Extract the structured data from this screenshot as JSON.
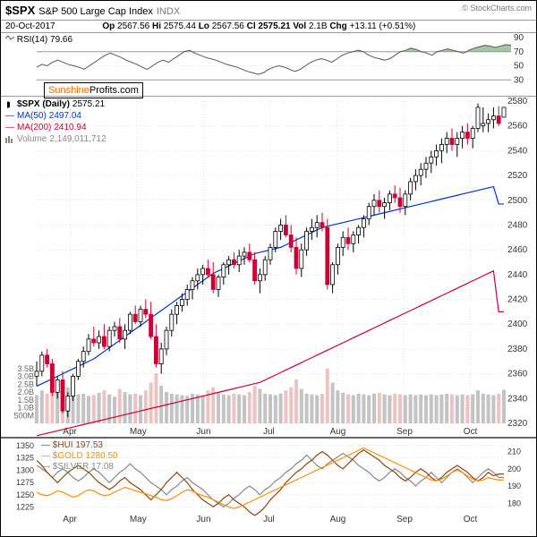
{
  "header": {
    "ticker": "$SPX",
    "name": "S&P 500 Large Cap Index",
    "exchange": "INDX",
    "attribution": "© StockCharts.com",
    "date": "20-Oct-2017",
    "open_label": "Op",
    "open": "2567.56",
    "high_label": "Hi",
    "high": "2575.44",
    "low_label": "Lo",
    "low": "2567.56",
    "close_label": "Cl",
    "close": "2575.21",
    "vol_label": "Vol",
    "vol": "2.1B",
    "chg_label": "Chg",
    "chg": "+13.11",
    "chg_pct": "(+0.51%)"
  },
  "watermark_a": "Sunshine",
  "watermark_b": "Profits.com",
  "rsi": {
    "label": "RSI(14)",
    "value": "79.66",
    "ylim": [
      10,
      90
    ],
    "ticks": [
      30,
      50,
      70,
      90
    ],
    "overbought": 70,
    "oversold": 30,
    "line_color": "#555",
    "fill_color": "#6a9e6a",
    "data": [
      48,
      52,
      50,
      55,
      58,
      55,
      52,
      50,
      48,
      45,
      50,
      55,
      60,
      65,
      68,
      65,
      62,
      58,
      55,
      52,
      48,
      45,
      50,
      55,
      58,
      55,
      60,
      65,
      70,
      72,
      68,
      65,
      62,
      60,
      58,
      55,
      52,
      50,
      48,
      45,
      42,
      40,
      38,
      40,
      45,
      48,
      50,
      48,
      45,
      42,
      45,
      50,
      55,
      58,
      60,
      58,
      55,
      60,
      65,
      68,
      70,
      72,
      70,
      65,
      62,
      60,
      58,
      60,
      65,
      70,
      72,
      75,
      73,
      70,
      68,
      65,
      70,
      72,
      74,
      72,
      70,
      68,
      72,
      75,
      77,
      79,
      78,
      76,
      78,
      80,
      79
    ]
  },
  "main": {
    "title": "$SPX (Daily)",
    "title_val": "2575.21",
    "title_color": "#000",
    "ma50_label": "MA(50)",
    "ma50_val": "2497.04",
    "ma50_color": "#0033cc",
    "ma200_label": "MA(200)",
    "ma200_val": "2410.94",
    "ma200_color": "#cc0033",
    "vol_label": "Volume",
    "vol_val": "2,149,011,712",
    "vol_color": "#888",
    "ylim": [
      2320,
      2580
    ],
    "yticks": [
      2320,
      2340,
      2360,
      2380,
      2400,
      2420,
      2440,
      2460,
      2480,
      2500,
      2520,
      2540,
      2560,
      2580
    ],
    "vol_ylim": [
      0,
      4000
    ],
    "vol_ticks": [
      "500M",
      "1.0B",
      "1.5B",
      "2.0B",
      "2.5B",
      "3.0B",
      "3.5B"
    ],
    "months": [
      "Apr",
      "May",
      "Jun",
      "Jul",
      "Aug",
      "Sep",
      "Oct"
    ],
    "candle_up": "#000",
    "candle_dn": "#cc0033",
    "vol_bar_up": "#aaa",
    "vol_bar_dn": "#e8a8a8",
    "ohlc": [
      [
        2358,
        2370,
        2350,
        2362
      ],
      [
        2362,
        2378,
        2358,
        2375
      ],
      [
        2375,
        2380,
        2365,
        2368
      ],
      [
        2368,
        2372,
        2342,
        2345
      ],
      [
        2345,
        2358,
        2340,
        2355
      ],
      [
        2355,
        2362,
        2328,
        2330
      ],
      [
        2330,
        2345,
        2325,
        2342
      ],
      [
        2342,
        2360,
        2338,
        2358
      ],
      [
        2358,
        2372,
        2355,
        2370
      ],
      [
        2370,
        2382,
        2365,
        2378
      ],
      [
        2378,
        2392,
        2375,
        2388
      ],
      [
        2388,
        2398,
        2382,
        2385
      ],
      [
        2385,
        2395,
        2380,
        2390
      ],
      [
        2390,
        2400,
        2380,
        2382
      ],
      [
        2382,
        2398,
        2378,
        2395
      ],
      [
        2395,
        2402,
        2390,
        2398
      ],
      [
        2398,
        2405,
        2385,
        2388
      ],
      [
        2388,
        2400,
        2380,
        2395
      ],
      [
        2395,
        2410,
        2392,
        2408
      ],
      [
        2408,
        2415,
        2400,
        2402
      ],
      [
        2402,
        2415,
        2398,
        2412
      ],
      [
        2412,
        2420,
        2405,
        2408
      ],
      [
        2408,
        2418,
        2388,
        2390
      ],
      [
        2390,
        2400,
        2365,
        2368
      ],
      [
        2368,
        2385,
        2360,
        2380
      ],
      [
        2380,
        2398,
        2375,
        2395
      ],
      [
        2395,
        2412,
        2390,
        2408
      ],
      [
        2408,
        2418,
        2400,
        2415
      ],
      [
        2415,
        2425,
        2410,
        2420
      ],
      [
        2420,
        2432,
        2415,
        2428
      ],
      [
        2428,
        2438,
        2420,
        2435
      ],
      [
        2435,
        2445,
        2428,
        2440
      ],
      [
        2440,
        2448,
        2432,
        2445
      ],
      [
        2445,
        2452,
        2438,
        2440
      ],
      [
        2440,
        2450,
        2425,
        2428
      ],
      [
        2428,
        2440,
        2422,
        2438
      ],
      [
        2438,
        2450,
        2432,
        2448
      ],
      [
        2448,
        2455,
        2440,
        2452
      ],
      [
        2452,
        2458,
        2445,
        2448
      ],
      [
        2448,
        2460,
        2442,
        2455
      ],
      [
        2455,
        2462,
        2448,
        2458
      ],
      [
        2458,
        2465,
        2450,
        2452
      ],
      [
        2452,
        2458,
        2432,
        2435
      ],
      [
        2435,
        2445,
        2425,
        2440
      ],
      [
        2440,
        2455,
        2435,
        2452
      ],
      [
        2452,
        2465,
        2448,
        2462
      ],
      [
        2462,
        2478,
        2458,
        2475
      ],
      [
        2475,
        2485,
        2468,
        2480
      ],
      [
        2480,
        2488,
        2470,
        2472
      ],
      [
        2472,
        2480,
        2458,
        2462
      ],
      [
        2462,
        2470,
        2440,
        2445
      ],
      [
        2445,
        2465,
        2438,
        2460
      ],
      [
        2460,
        2478,
        2455,
        2475
      ],
      [
        2475,
        2485,
        2468,
        2478
      ],
      [
        2478,
        2488,
        2470,
        2482
      ],
      [
        2482,
        2490,
        2475,
        2478
      ],
      [
        2478,
        2485,
        2428,
        2432
      ],
      [
        2432,
        2450,
        2425,
        2448
      ],
      [
        2448,
        2465,
        2440,
        2462
      ],
      [
        2462,
        2475,
        2455,
        2470
      ],
      [
        2470,
        2478,
        2460,
        2465
      ],
      [
        2465,
        2475,
        2458,
        2472
      ],
      [
        2472,
        2480,
        2465,
        2478
      ],
      [
        2478,
        2488,
        2470,
        2485
      ],
      [
        2485,
        2498,
        2480,
        2495
      ],
      [
        2495,
        2505,
        2488,
        2500
      ],
      [
        2500,
        2508,
        2490,
        2495
      ],
      [
        2495,
        2502,
        2485,
        2498
      ],
      [
        2498,
        2508,
        2492,
        2505
      ],
      [
        2505,
        2512,
        2498,
        2502
      ],
      [
        2502,
        2510,
        2490,
        2495
      ],
      [
        2495,
        2508,
        2488,
        2505
      ],
      [
        2505,
        2518,
        2500,
        2515
      ],
      [
        2515,
        2525,
        2508,
        2520
      ],
      [
        2520,
        2530,
        2512,
        2525
      ],
      [
        2525,
        2535,
        2518,
        2530
      ],
      [
        2530,
        2540,
        2522,
        2535
      ],
      [
        2535,
        2545,
        2528,
        2540
      ],
      [
        2540,
        2550,
        2530,
        2545
      ],
      [
        2545,
        2555,
        2538,
        2550
      ],
      [
        2550,
        2558,
        2540,
        2545
      ],
      [
        2545,
        2555,
        2535,
        2550
      ],
      [
        2550,
        2560,
        2542,
        2555
      ],
      [
        2555,
        2562,
        2545,
        2550
      ],
      [
        2550,
        2560,
        2542,
        2558
      ],
      [
        2558,
        2578,
        2555,
        2575
      ],
      [
        2560,
        2575,
        2555,
        2562
      ],
      [
        2562,
        2570,
        2555,
        2565
      ],
      [
        2565,
        2575,
        2558,
        2568
      ],
      [
        2568,
        2576,
        2560,
        2562
      ],
      [
        2567,
        2575,
        2567,
        2575
      ]
    ],
    "volumes": [
      1800,
      2100,
      1900,
      2400,
      2200,
      2800,
      2300,
      2000,
      1850,
      1900,
      1750,
      1800,
      1950,
      2100,
      1850,
      1700,
      2200,
      2000,
      1850,
      1900,
      1800,
      2100,
      2600,
      3200,
      2400,
      2000,
      1900,
      1850,
      1800,
      1750,
      1900,
      1850,
      1800,
      2100,
      2300,
      1950,
      1850,
      1800,
      1900,
      1850,
      1800,
      2000,
      2400,
      2200,
      1900,
      1850,
      1800,
      1900,
      2100,
      2300,
      2800,
      2200,
      1900,
      1850,
      1800,
      1900,
      3500,
      2600,
      2100,
      1950,
      1850,
      1800,
      1900,
      1850,
      1800,
      1900,
      1950,
      1850,
      1800,
      1900,
      1850,
      1800,
      1850,
      1800,
      1850,
      1800,
      1850,
      1800,
      1850,
      1900,
      1850,
      1800,
      1850,
      1800,
      1850,
      2100,
      1900,
      1850,
      1800,
      1900,
      2149
    ],
    "ma50": [
      2350,
      2352,
      2354,
      2356,
      2358,
      2360,
      2362,
      2364,
      2366,
      2368,
      2370,
      2372,
      2375,
      2378,
      2381,
      2384,
      2387,
      2390,
      2393,
      2396,
      2399,
      2402,
      2405,
      2408,
      2411,
      2414,
      2417,
      2420,
      2423,
      2426,
      2429,
      2432,
      2435,
      2438,
      2441,
      2443,
      2445,
      2447,
      2449,
      2451,
      2453,
      2455,
      2457,
      2458,
      2459,
      2460,
      2461,
      2462,
      2464,
      2466,
      2468,
      2470,
      2472,
      2474,
      2476,
      2478,
      2479,
      2480,
      2481,
      2482,
      2483,
      2484,
      2485,
      2486,
      2487,
      2488,
      2489,
      2490,
      2491,
      2492,
      2493,
      2494,
      2495,
      2496,
      2497,
      2498,
      2499,
      2500,
      2501,
      2502,
      2503,
      2504,
      2505,
      2506,
      2507,
      2508,
      2509,
      2510,
      2511,
      2497,
      2497
    ],
    "ma200": [
      2310,
      2311,
      2312,
      2313,
      2314,
      2315,
      2316,
      2317,
      2318,
      2319,
      2320,
      2321,
      2322,
      2323,
      2324,
      2325,
      2326,
      2327,
      2328,
      2329,
      2330,
      2331,
      2332,
      2333,
      2334,
      2335,
      2336,
      2337,
      2338,
      2339,
      2340,
      2341,
      2342,
      2343,
      2344,
      2345,
      2346,
      2347,
      2348,
      2349,
      2350,
      2351,
      2352,
      2353,
      2355,
      2357,
      2359,
      2361,
      2363,
      2365,
      2367,
      2369,
      2371,
      2373,
      2375,
      2377,
      2379,
      2381,
      2383,
      2385,
      2387,
      2389,
      2391,
      2393,
      2395,
      2397,
      2399,
      2401,
      2403,
      2405,
      2407,
      2409,
      2411,
      2413,
      2415,
      2417,
      2419,
      2421,
      2423,
      2425,
      2427,
      2429,
      2431,
      2433,
      2435,
      2437,
      2439,
      2441,
      2443,
      2410,
      2410
    ]
  },
  "lower": {
    "left_ticks": [
      1225,
      1250,
      1275,
      1300,
      1325,
      1350
    ],
    "right_ticks": [
      180,
      190,
      200,
      210
    ],
    "hui_label": "$HUI",
    "hui_val": "197.53",
    "hui_color": "#8b4513",
    "gold_label": "$GOLD",
    "gold_val": "1280.50",
    "gold_color": "#ff8c00",
    "silver_label": "$SILVER",
    "silver_val": "17.08",
    "silver_color": "#888",
    "months": [
      "Apr",
      "May",
      "Jun",
      "Jul",
      "Aug",
      "Sep",
      "Oct"
    ],
    "hui": [
      205,
      202,
      198,
      195,
      192,
      195,
      198,
      200,
      202,
      200,
      198,
      195,
      192,
      190,
      188,
      190,
      193,
      195,
      192,
      190,
      188,
      185,
      182,
      185,
      188,
      192,
      195,
      198,
      195,
      192,
      188,
      185,
      182,
      180,
      178,
      180,
      183,
      185,
      182,
      180,
      178,
      175,
      173,
      175,
      178,
      182,
      185,
      188,
      192,
      195,
      198,
      200,
      203,
      205,
      208,
      210,
      208,
      205,
      202,
      200,
      203,
      206,
      209,
      211,
      209,
      207,
      205,
      202,
      200,
      198,
      195,
      193,
      195,
      198,
      200,
      198,
      195,
      193,
      195,
      198,
      200,
      202,
      200,
      198,
      195,
      193,
      195,
      198,
      196,
      197,
      197
    ],
    "gold": [
      1255,
      1250,
      1248,
      1252,
      1258,
      1255,
      1250,
      1245,
      1248,
      1255,
      1260,
      1258,
      1252,
      1248,
      1250,
      1255,
      1260,
      1265,
      1262,
      1258,
      1255,
      1252,
      1248,
      1245,
      1240,
      1238,
      1242,
      1248,
      1255,
      1260,
      1258,
      1252,
      1248,
      1245,
      1240,
      1235,
      1230,
      1225,
      1222,
      1225,
      1230,
      1235,
      1240,
      1245,
      1250,
      1255,
      1260,
      1265,
      1270,
      1275,
      1280,
      1285,
      1290,
      1295,
      1300,
      1305,
      1310,
      1315,
      1320,
      1325,
      1330,
      1335,
      1340,
      1345,
      1340,
      1335,
      1330,
      1325,
      1320,
      1315,
      1310,
      1305,
      1300,
      1295,
      1290,
      1285,
      1280,
      1278,
      1282,
      1288,
      1295,
      1300,
      1295,
      1288,
      1282,
      1278,
      1280,
      1285,
      1282,
      1280,
      1280
    ],
    "silver": [
      202,
      200,
      198,
      195,
      198,
      200,
      198,
      195,
      193,
      195,
      198,
      200,
      198,
      195,
      192,
      195,
      198,
      200,
      203,
      200,
      198,
      195,
      192,
      190,
      188,
      185,
      188,
      190,
      193,
      195,
      192,
      190,
      188,
      185,
      182,
      180,
      178,
      180,
      183,
      185,
      188,
      190,
      188,
      185,
      188,
      190,
      193,
      195,
      198,
      200,
      203,
      205,
      208,
      205,
      202,
      200,
      203,
      205,
      207,
      209,
      207,
      205,
      202,
      200,
      198,
      195,
      193,
      195,
      198,
      200,
      198,
      195,
      193,
      190,
      193,
      195,
      198,
      195,
      192,
      195,
      198,
      200,
      198,
      195,
      192,
      195,
      198,
      200,
      198,
      195,
      195
    ]
  }
}
